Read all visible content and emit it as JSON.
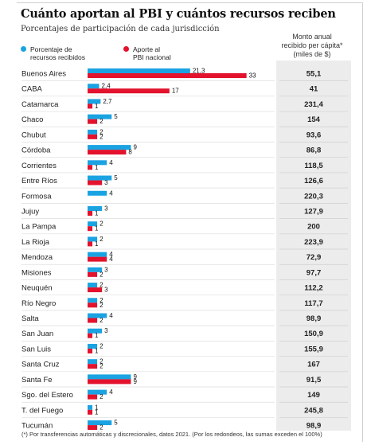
{
  "title": "Cuánto aportan al PBI y cuántos recursos reciben",
  "subtitle": "Porcentajes de participación de cada jurisdicción",
  "legend": [
    {
      "label_lines": [
        "Porcentaje de",
        "recursos recibidos"
      ],
      "color": "#1aa3e2"
    },
    {
      "label_lines": [
        "Aporte al",
        "PBI nacional"
      ],
      "color": "#e3122d"
    }
  ],
  "right_column_header": [
    "Monto anual",
    "recibido per cápita*",
    "(miles de $)"
  ],
  "footnote": "(*) Por transferencias automáticas y discrecionales, datos 2021. (Por los redondeos, las sumas exceden el 100%)",
  "chart_data": {
    "type": "bar",
    "orientation": "horizontal",
    "categories": [
      "Buenos Aires",
      "CABA",
      "Catamarca",
      "Chaco",
      "Chubut",
      "Córdoba",
      "Corrientes",
      "Entre Ríos",
      "Formosa",
      "Jujuy",
      "La Pampa",
      "La Rioja",
      "Mendoza",
      "Misiones",
      "Neuquén",
      "Río Negro",
      "Salta",
      "San Juan",
      "San Luis",
      "Santa Cruz",
      "Santa Fe",
      "Sgo. del Estero",
      "T. del Fuego",
      "Tucumán"
    ],
    "series": [
      {
        "name": "Porcentaje de recursos recibidos",
        "color": "#1aa3e2",
        "values": [
          21.3,
          2.4,
          2.7,
          5,
          2,
          9,
          4,
          5,
          4,
          3,
          2,
          2,
          4,
          3,
          2,
          2,
          4,
          3,
          2,
          2,
          9,
          4,
          1,
          5
        ],
        "labels": [
          "21,3",
          "2,4",
          "2,7",
          "5",
          "2",
          "9",
          "4",
          "5",
          "4",
          "3",
          "2",
          "2",
          "4",
          "3",
          "2",
          "2",
          "4",
          "3",
          "2",
          "2",
          "9",
          "4",
          "1",
          "5"
        ]
      },
      {
        "name": "Aporte al PBI nacional",
        "color": "#e3122d",
        "values": [
          33,
          17,
          1,
          2,
          2,
          8,
          1,
          3,
          null,
          1,
          1,
          1,
          4,
          2,
          3,
          2,
          2,
          1,
          1,
          2,
          9,
          2,
          1,
          2
        ],
        "labels": [
          "33",
          "17",
          "1",
          "2",
          "2",
          "8",
          "1",
          "3",
          "",
          "1",
          "1",
          "1",
          "4",
          "2",
          "3",
          "2",
          "2",
          "1",
          "1",
          "2",
          "9",
          "2",
          "1",
          "2"
        ]
      }
    ],
    "per_capita_thousands": [
      "55,1",
      "41",
      "231,4",
      "154",
      "93,6",
      "86,8",
      "118,5",
      "126,6",
      "220,3",
      "127,9",
      "200",
      "223,9",
      "72,9",
      "97,7",
      "112,2",
      "117,7",
      "98,9",
      "150,9",
      "155,9",
      "167",
      "91,5",
      "149",
      "245,8",
      "98,9"
    ],
    "xlim": [
      0,
      33
    ],
    "grid": false,
    "legend_position": "top-left"
  }
}
